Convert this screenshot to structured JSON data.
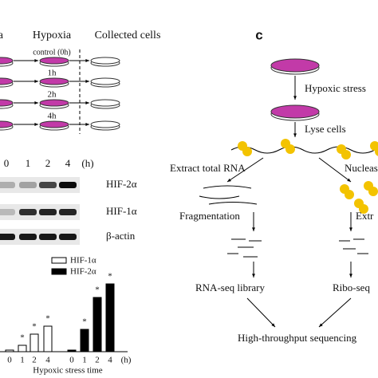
{
  "panel_a": {
    "headers": [
      "a",
      "Hypoxia",
      "Collected cells"
    ],
    "times": [
      "control (0h)",
      "1h",
      "2h",
      "4h"
    ]
  },
  "panel_b": {
    "lanes": [
      "0",
      "1",
      "2",
      "4"
    ],
    "unit": "(h)",
    "bands": [
      "HIF-2α",
      "HIF-1α",
      "β-actin"
    ]
  },
  "chart_data": {
    "type": "bar",
    "categories": [
      "0",
      "1",
      "2",
      "4"
    ],
    "x_unit": "(h)",
    "xlabel": "Hypoxic stress time",
    "series": [
      {
        "name": "HIF-1α",
        "color": "#ffffff",
        "values": [
          2,
          8,
          22,
          32
        ],
        "annotations": [
          null,
          "*",
          "*",
          "*"
        ]
      },
      {
        "name": "HIF-2α",
        "color": "#000000",
        "values": [
          2,
          28,
          68,
          85
        ],
        "annotations": [
          null,
          "*",
          "*",
          "*"
        ]
      }
    ]
  },
  "panel_c": {
    "label": "c",
    "stress": "Hypoxic stress",
    "lyse": "Lyse cells",
    "left_extract": "Extract total RNA",
    "right_extract": "Nucleas",
    "fragmentation": "Fragmentation",
    "right_step": "Extr",
    "left_library": "RNA-seq library",
    "right_library": "Ribo-seq",
    "sequencing": "High-throughput sequencing"
  }
}
